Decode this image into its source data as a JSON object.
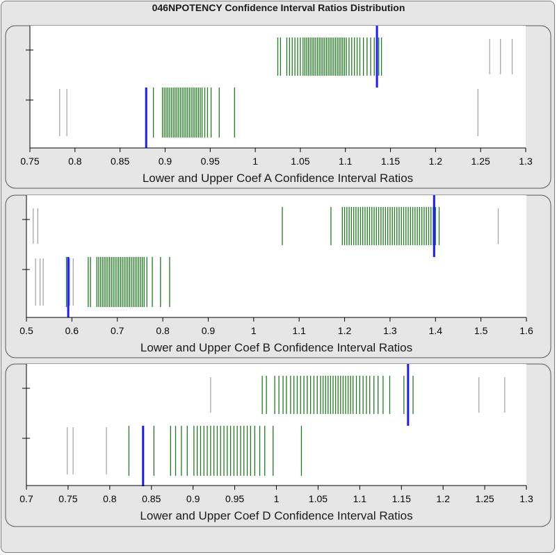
{
  "title": "046NPOTENCY Confidence Interval Ratios Distribution",
  "colors": {
    "panel_bg": "#e6e6e6",
    "plot_bg": "#ffffff",
    "inlier": "#1f7a1f",
    "outlier": "#a6a6a6",
    "marker": "#1a1aff"
  },
  "chart_data": [
    {
      "type": "rug",
      "xlabel": "Lower and Upper Coef A Confidence Interval Ratios",
      "xlim": [
        0.75,
        1.3
      ],
      "xticks": [
        0.75,
        0.8,
        0.85,
        0.9,
        0.95,
        1,
        1.05,
        1.1,
        1.15,
        1.2,
        1.25,
        1.3
      ],
      "xtick_labels": [
        "0.75",
        "0.8",
        "0.85",
        "0.9",
        "0.95",
        "1",
        "1.05",
        "1.1",
        "1.15",
        "1.2",
        "1.25",
        "1.3"
      ],
      "rows": [
        {
          "marker": 1.135,
          "outliers": [
            1.26,
            1.272,
            1.285
          ],
          "values": [
            1.025,
            1.028,
            1.035,
            1.038,
            1.041,
            1.044,
            1.047,
            1.05,
            1.053,
            1.055,
            1.057,
            1.059,
            1.061,
            1.063,
            1.065,
            1.067,
            1.069,
            1.071,
            1.073,
            1.075,
            1.077,
            1.079,
            1.081,
            1.083,
            1.085,
            1.087,
            1.089,
            1.091,
            1.093,
            1.095,
            1.097,
            1.099,
            1.101,
            1.104,
            1.107,
            1.11,
            1.113,
            1.116,
            1.12,
            1.124,
            1.128,
            1.132,
            1.137,
            1.14
          ]
        },
        {
          "marker": 0.879,
          "outliers": [
            0.783,
            0.791,
            1.247
          ],
          "values": [
            0.887,
            0.897,
            0.899,
            0.901,
            0.903,
            0.905,
            0.907,
            0.909,
            0.911,
            0.913,
            0.915,
            0.917,
            0.919,
            0.921,
            0.923,
            0.925,
            0.927,
            0.929,
            0.931,
            0.933,
            0.935,
            0.937,
            0.939,
            0.941,
            0.944,
            0.947,
            0.951,
            0.96,
            0.977
          ]
        }
      ]
    },
    {
      "type": "rug",
      "xlabel": "Lower and Upper Coef B Confidence Interval Ratios",
      "xlim": [
        0.5,
        1.6
      ],
      "xticks": [
        0.5,
        0.6,
        0.7,
        0.8,
        0.9,
        1,
        1.1,
        1.2,
        1.3,
        1.4,
        1.5,
        1.6
      ],
      "xtick_labels": [
        "0.5",
        "0.6",
        "0.7",
        "0.8",
        "0.9",
        "1",
        "1.1",
        "1.2",
        "1.3",
        "1.4",
        "1.5",
        "1.6"
      ],
      "rows": [
        {
          "marker": 1.397,
          "outliers": [
            0.515,
            0.525,
            1.538
          ],
          "values": [
            1.063,
            1.17,
            1.195,
            1.2,
            1.205,
            1.21,
            1.215,
            1.22,
            1.225,
            1.23,
            1.235,
            1.24,
            1.245,
            1.25,
            1.255,
            1.26,
            1.265,
            1.27,
            1.275,
            1.28,
            1.285,
            1.29,
            1.295,
            1.3,
            1.305,
            1.31,
            1.315,
            1.32,
            1.325,
            1.33,
            1.335,
            1.34,
            1.345,
            1.35,
            1.355,
            1.36,
            1.365,
            1.37,
            1.375,
            1.38,
            1.385,
            1.39,
            1.395,
            1.4,
            1.408
          ]
        },
        {
          "marker": 0.592,
          "outliers": [
            0.52,
            0.53,
            0.537,
            0.595,
            0.603
          ],
          "values": [
            0.588,
            0.636,
            0.641,
            0.655,
            0.659,
            0.663,
            0.667,
            0.671,
            0.675,
            0.679,
            0.683,
            0.687,
            0.691,
            0.695,
            0.699,
            0.703,
            0.707,
            0.711,
            0.715,
            0.719,
            0.723,
            0.727,
            0.731,
            0.735,
            0.739,
            0.743,
            0.747,
            0.751,
            0.755,
            0.759,
            0.765,
            0.777,
            0.795,
            0.815
          ]
        }
      ]
    },
    {
      "type": "rug",
      "xlabel": "Lower and Upper Coef D Confidence Interval Ratios",
      "xlim": [
        0.7,
        1.3
      ],
      "xticks": [
        0.7,
        0.75,
        0.8,
        0.85,
        0.9,
        0.95,
        1,
        1.05,
        1.1,
        1.15,
        1.2,
        1.25,
        1.3
      ],
      "xtick_labels": [
        "0.7",
        "0.75",
        "0.8",
        "0.85",
        "0.9",
        "0.95",
        "1",
        "1.05",
        "1.1",
        "1.15",
        "1.2",
        "1.25",
        "1.3"
      ],
      "rows": [
        {
          "marker": 1.158,
          "outliers": [
            0.921,
            1.243,
            1.274
          ],
          "values": [
            0.983,
            0.988,
            0.998,
            1.003,
            1.008,
            1.012,
            1.017,
            1.021,
            1.025,
            1.029,
            1.033,
            1.037,
            1.041,
            1.045,
            1.049,
            1.053,
            1.056,
            1.059,
            1.062,
            1.065,
            1.068,
            1.071,
            1.074,
            1.077,
            1.08,
            1.083,
            1.086,
            1.089,
            1.092,
            1.096,
            1.1,
            1.104,
            1.108,
            1.112,
            1.117,
            1.122,
            1.128,
            1.136,
            1.153,
            1.164
          ]
        },
        {
          "marker": 0.84,
          "outliers": [
            0.749,
            0.756,
            0.796
          ],
          "values": [
            0.823,
            0.853,
            0.873,
            0.879,
            0.886,
            0.893,
            0.901,
            0.905,
            0.909,
            0.913,
            0.917,
            0.921,
            0.925,
            0.929,
            0.933,
            0.937,
            0.941,
            0.945,
            0.949,
            0.953,
            0.957,
            0.961,
            0.965,
            0.969,
            0.974,
            0.98,
            0.986,
            0.996,
            1.03
          ]
        }
      ]
    }
  ]
}
